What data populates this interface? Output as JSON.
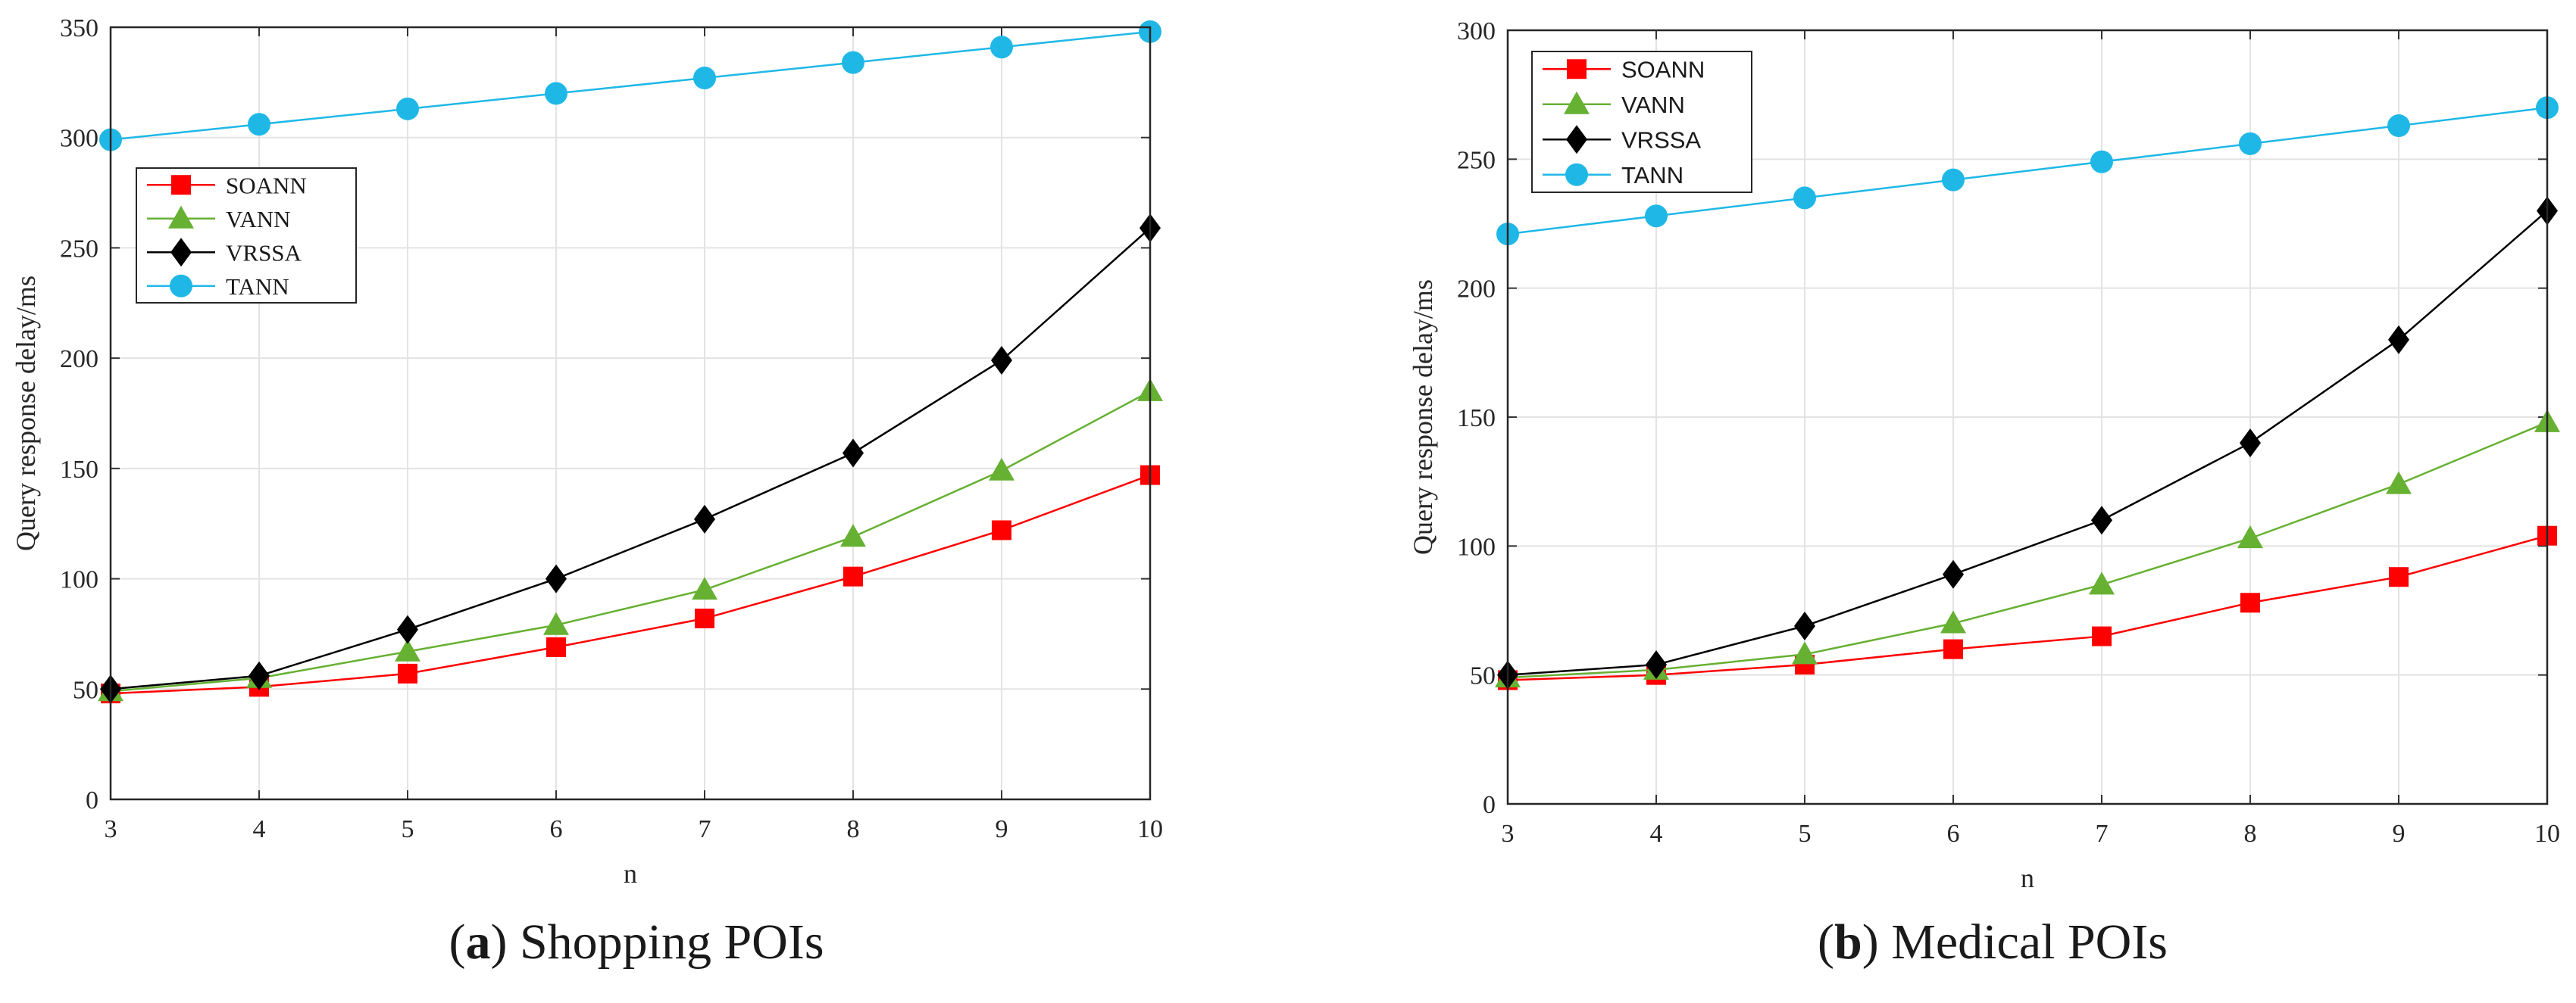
{
  "captions": [
    {
      "open": "(",
      "label": "a",
      "close": ")",
      "text": " Shopping POIs"
    },
    {
      "open": "(",
      "label": "b",
      "close": ")",
      "text": " Medical POIs"
    }
  ],
  "chart_data": [
    {
      "type": "line",
      "title": "",
      "xlabel": "n",
      "ylabel": "Query response delay/ms",
      "x": [
        3,
        4,
        5,
        6,
        7,
        8,
        9,
        10
      ],
      "xlim": [
        3,
        10
      ],
      "ylim": [
        0,
        350
      ],
      "yticks": [
        0,
        50,
        100,
        150,
        200,
        250,
        300,
        350
      ],
      "grid": true,
      "legend_position": "left-middle",
      "series": [
        {
          "name": "SOANN",
          "values": [
            48,
            51,
            57,
            69,
            82,
            101,
            122,
            147
          ],
          "color": "#ff0000",
          "marker": "square"
        },
        {
          "name": "VANN",
          "values": [
            49,
            55,
            67,
            79,
            95,
            119,
            149,
            185
          ],
          "color": "#66b032",
          "marker": "triangle"
        },
        {
          "name": "VRSSA",
          "values": [
            50,
            56,
            77,
            100,
            127,
            157,
            199,
            259
          ],
          "color": "#000000",
          "marker": "diamond"
        },
        {
          "name": "TANN",
          "values": [
            299,
            306,
            313,
            320,
            327,
            334,
            341,
            348
          ],
          "color": "#1fb8e6",
          "marker": "circle"
        }
      ]
    },
    {
      "type": "line",
      "title": "",
      "xlabel": "n",
      "ylabel": "Query response delay/ms",
      "x": [
        3,
        4,
        5,
        6,
        7,
        8,
        9,
        10
      ],
      "xlim": [
        3,
        10
      ],
      "ylim": [
        0,
        300
      ],
      "yticks": [
        0,
        50,
        100,
        150,
        200,
        250,
        300
      ],
      "grid": true,
      "legend_position": "top-left",
      "series": [
        {
          "name": "SOANN",
          "values": [
            48,
            50,
            54,
            60,
            65,
            78,
            88,
            104
          ],
          "color": "#ff0000",
          "marker": "square"
        },
        {
          "name": "VANN",
          "values": [
            49,
            52,
            58,
            70,
            85,
            103,
            124,
            148
          ],
          "color": "#66b032",
          "marker": "triangle"
        },
        {
          "name": "VRSSA",
          "values": [
            50,
            54,
            69,
            89,
            110,
            140,
            180,
            230
          ],
          "color": "#000000",
          "marker": "diamond"
        },
        {
          "name": "TANN",
          "values": [
            221,
            228,
            235,
            242,
            249,
            256,
            263,
            270
          ],
          "color": "#1fb8e6",
          "marker": "circle"
        }
      ]
    }
  ]
}
